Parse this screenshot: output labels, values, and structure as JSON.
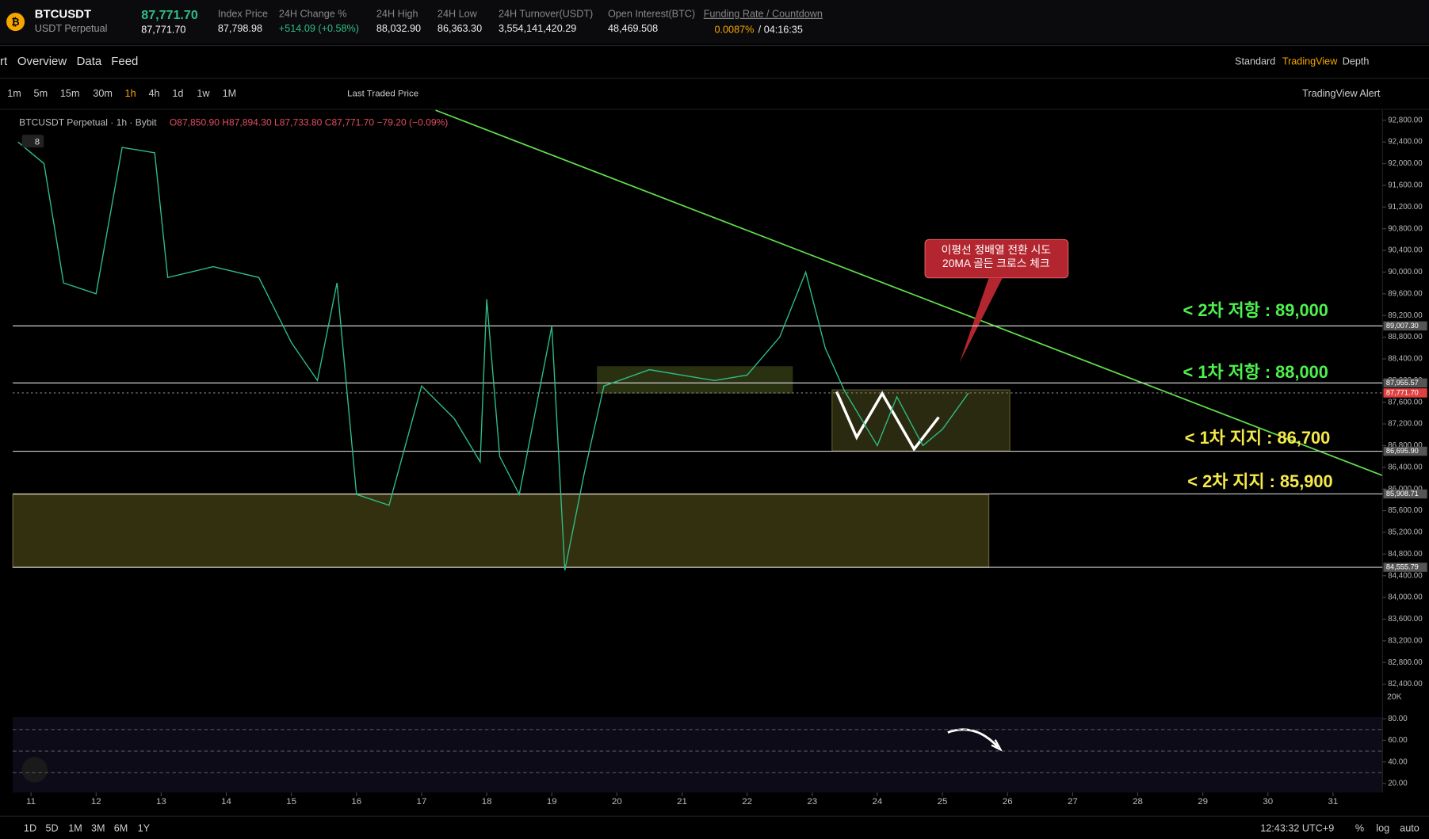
{
  "header": {
    "symbol": "BTCUSDT",
    "contract": "USDT Perpetual",
    "last_price": "87,771.70",
    "mark_price": "87,771.70",
    "stats": [
      {
        "label": "Index Price",
        "value": "87,798.98"
      },
      {
        "label": "24H Change %",
        "value": "+514.09 (+0.58%)"
      },
      {
        "label": "24H High",
        "value": "88,032.90"
      },
      {
        "label": "24H Low",
        "value": "86,363.30"
      },
      {
        "label": "24H Turnover(USDT)",
        "value": "3,554,141,420.29"
      },
      {
        "label": "Open Interest(BTC)",
        "value": "48,469.508"
      }
    ],
    "funding_label": "Funding Rate / Countdown",
    "funding_rate": "0.0087%",
    "countdown": "/ 04:16:35"
  },
  "nav": {
    "tabs": [
      "rt",
      "Overview",
      "Data",
      "Feed"
    ],
    "views": [
      "Standard",
      "TradingView",
      "Depth"
    ]
  },
  "toolbar": {
    "intervals": [
      "1m",
      "5m",
      "15m",
      "30m",
      "1h",
      "4h",
      "1d",
      "1w",
      "1M"
    ],
    "price_type": "Last Traded Price",
    "alert": "TradingView Alert"
  },
  "chart_data": {
    "type": "line",
    "color": "#2ebd85",
    "legend": {
      "name": "BTCUSDT Perpetual · 1h · Bybit",
      "ohlc": "O87,850.90 H87,894.30 L87,733.80 C87,771.70 −79.20 (−0.09%)",
      "badge": "8"
    },
    "x": [
      10.8,
      11.2,
      11.5,
      12.0,
      12.4,
      12.9,
      13.1,
      13.8,
      14.5,
      15.0,
      15.4,
      15.7,
      16.0,
      16.5,
      17.0,
      17.5,
      17.9,
      18.0,
      18.2,
      18.5,
      19.0,
      19.2,
      19.5,
      19.8,
      20.5,
      21.5,
      22.0,
      22.5,
      22.9,
      23.2,
      23.5,
      24.0,
      24.3,
      24.7,
      25.0,
      25.4
    ],
    "values": [
      92400,
      92000,
      89800,
      89600,
      92300,
      92200,
      89900,
      90100,
      89900,
      88700,
      88000,
      89800,
      85900,
      85700,
      87900,
      87300,
      86500,
      89500,
      86600,
      85900,
      89000,
      84500,
      86300,
      87900,
      88200,
      88000,
      88100,
      88800,
      90000,
      88600,
      87800,
      86800,
      87700,
      86800,
      87100,
      87770
    ],
    "xlim": [
      10.72,
      31.76
    ],
    "ylim": [
      82250,
      92985
    ],
    "xticks": [
      11,
      12,
      13,
      14,
      15,
      16,
      17,
      18,
      19,
      20,
      21,
      22,
      23,
      24,
      25,
      26,
      27,
      28,
      29,
      30,
      31
    ],
    "yticks": [
      {
        "value": 92800,
        "label": "92,800.00"
      },
      {
        "value": 92400,
        "label": "92,400.00"
      },
      {
        "value": 92000,
        "label": "92,000.00"
      },
      {
        "value": 91600,
        "label": "91,600.00"
      },
      {
        "value": 91200,
        "label": "91,200.00"
      },
      {
        "value": 90800,
        "label": "90,800.00"
      },
      {
        "value": 90400,
        "label": "90,400.00"
      },
      {
        "value": 90000,
        "label": "90,000.00"
      },
      {
        "value": 89600,
        "label": "89,600.00"
      },
      {
        "value": 89200,
        "label": "89,200.00"
      },
      {
        "value": 88800,
        "label": "88,800.00"
      },
      {
        "value": 88400,
        "label": "88,400.00"
      },
      {
        "value": 88000,
        "label": "88,000.00"
      },
      {
        "value": 87600,
        "label": "87,600.00"
      },
      {
        "value": 87200,
        "label": "87,200.00"
      },
      {
        "value": 86800,
        "label": "86,800.00"
      },
      {
        "value": 86400,
        "label": "86,400.00"
      },
      {
        "value": 86000,
        "label": "86,000.00"
      },
      {
        "value": 85600,
        "label": "85,600.00"
      },
      {
        "value": 85200,
        "label": "85,200.00"
      },
      {
        "value": 84800,
        "label": "84,800.00"
      },
      {
        "value": 84400,
        "label": "84,400.00"
      },
      {
        "value": 84000,
        "label": "84,000.00"
      },
      {
        "value": 83600,
        "label": "83,600.00"
      },
      {
        "value": 83200,
        "label": "83,200.00"
      },
      {
        "value": 82800,
        "label": "82,800.00"
      },
      {
        "value": 82400,
        "label": "82,400.00"
      }
    ],
    "price_lines": [
      {
        "value": 89007.3,
        "label": "89,007.30"
      },
      {
        "value": 87955.57,
        "label": "87,955.57"
      },
      {
        "value": 87771.7,
        "label": "87,771.70"
      },
      {
        "value": 86695.9,
        "label": "86,695.90"
      },
      {
        "value": 85908.71,
        "label": "85,908.71"
      },
      {
        "value": 84555.79,
        "label": "84,555.79"
      }
    ],
    "annotations": [
      {
        "text": "< 2차 저항 : 89,000",
        "color": "#4ef04e"
      },
      {
        "text": "< 1차 저항 : 88,000",
        "color": "#4ef04e"
      },
      {
        "text": "< 1차 지지 : 86,700",
        "color": "#f5e94a"
      },
      {
        "text": "< 2차 지지 : 85,900",
        "color": "#f5e94a"
      }
    ],
    "callout": [
      "이평선 정배열 전환 시도",
      "20MA 골든 크로스 체크"
    ],
    "volume_label": "20K",
    "rsi": {
      "ylim": [
        11.6,
        81.7
      ],
      "yticks": [
        {
          "value": 80,
          "label": "80.00"
        },
        {
          "value": 60,
          "label": "60.00"
        },
        {
          "value": 40,
          "label": "40.00"
        },
        {
          "value": 20,
          "label": "20.00"
        }
      ],
      "levels": [
        70,
        50,
        30
      ]
    }
  },
  "footer": {
    "ranges": [
      "1D",
      "5D",
      "1M",
      "3M",
      "6M",
      "1Y"
    ],
    "clock": "12:43:32 UTC+9",
    "scale_options": [
      "%",
      "log",
      "auto"
    ]
  }
}
